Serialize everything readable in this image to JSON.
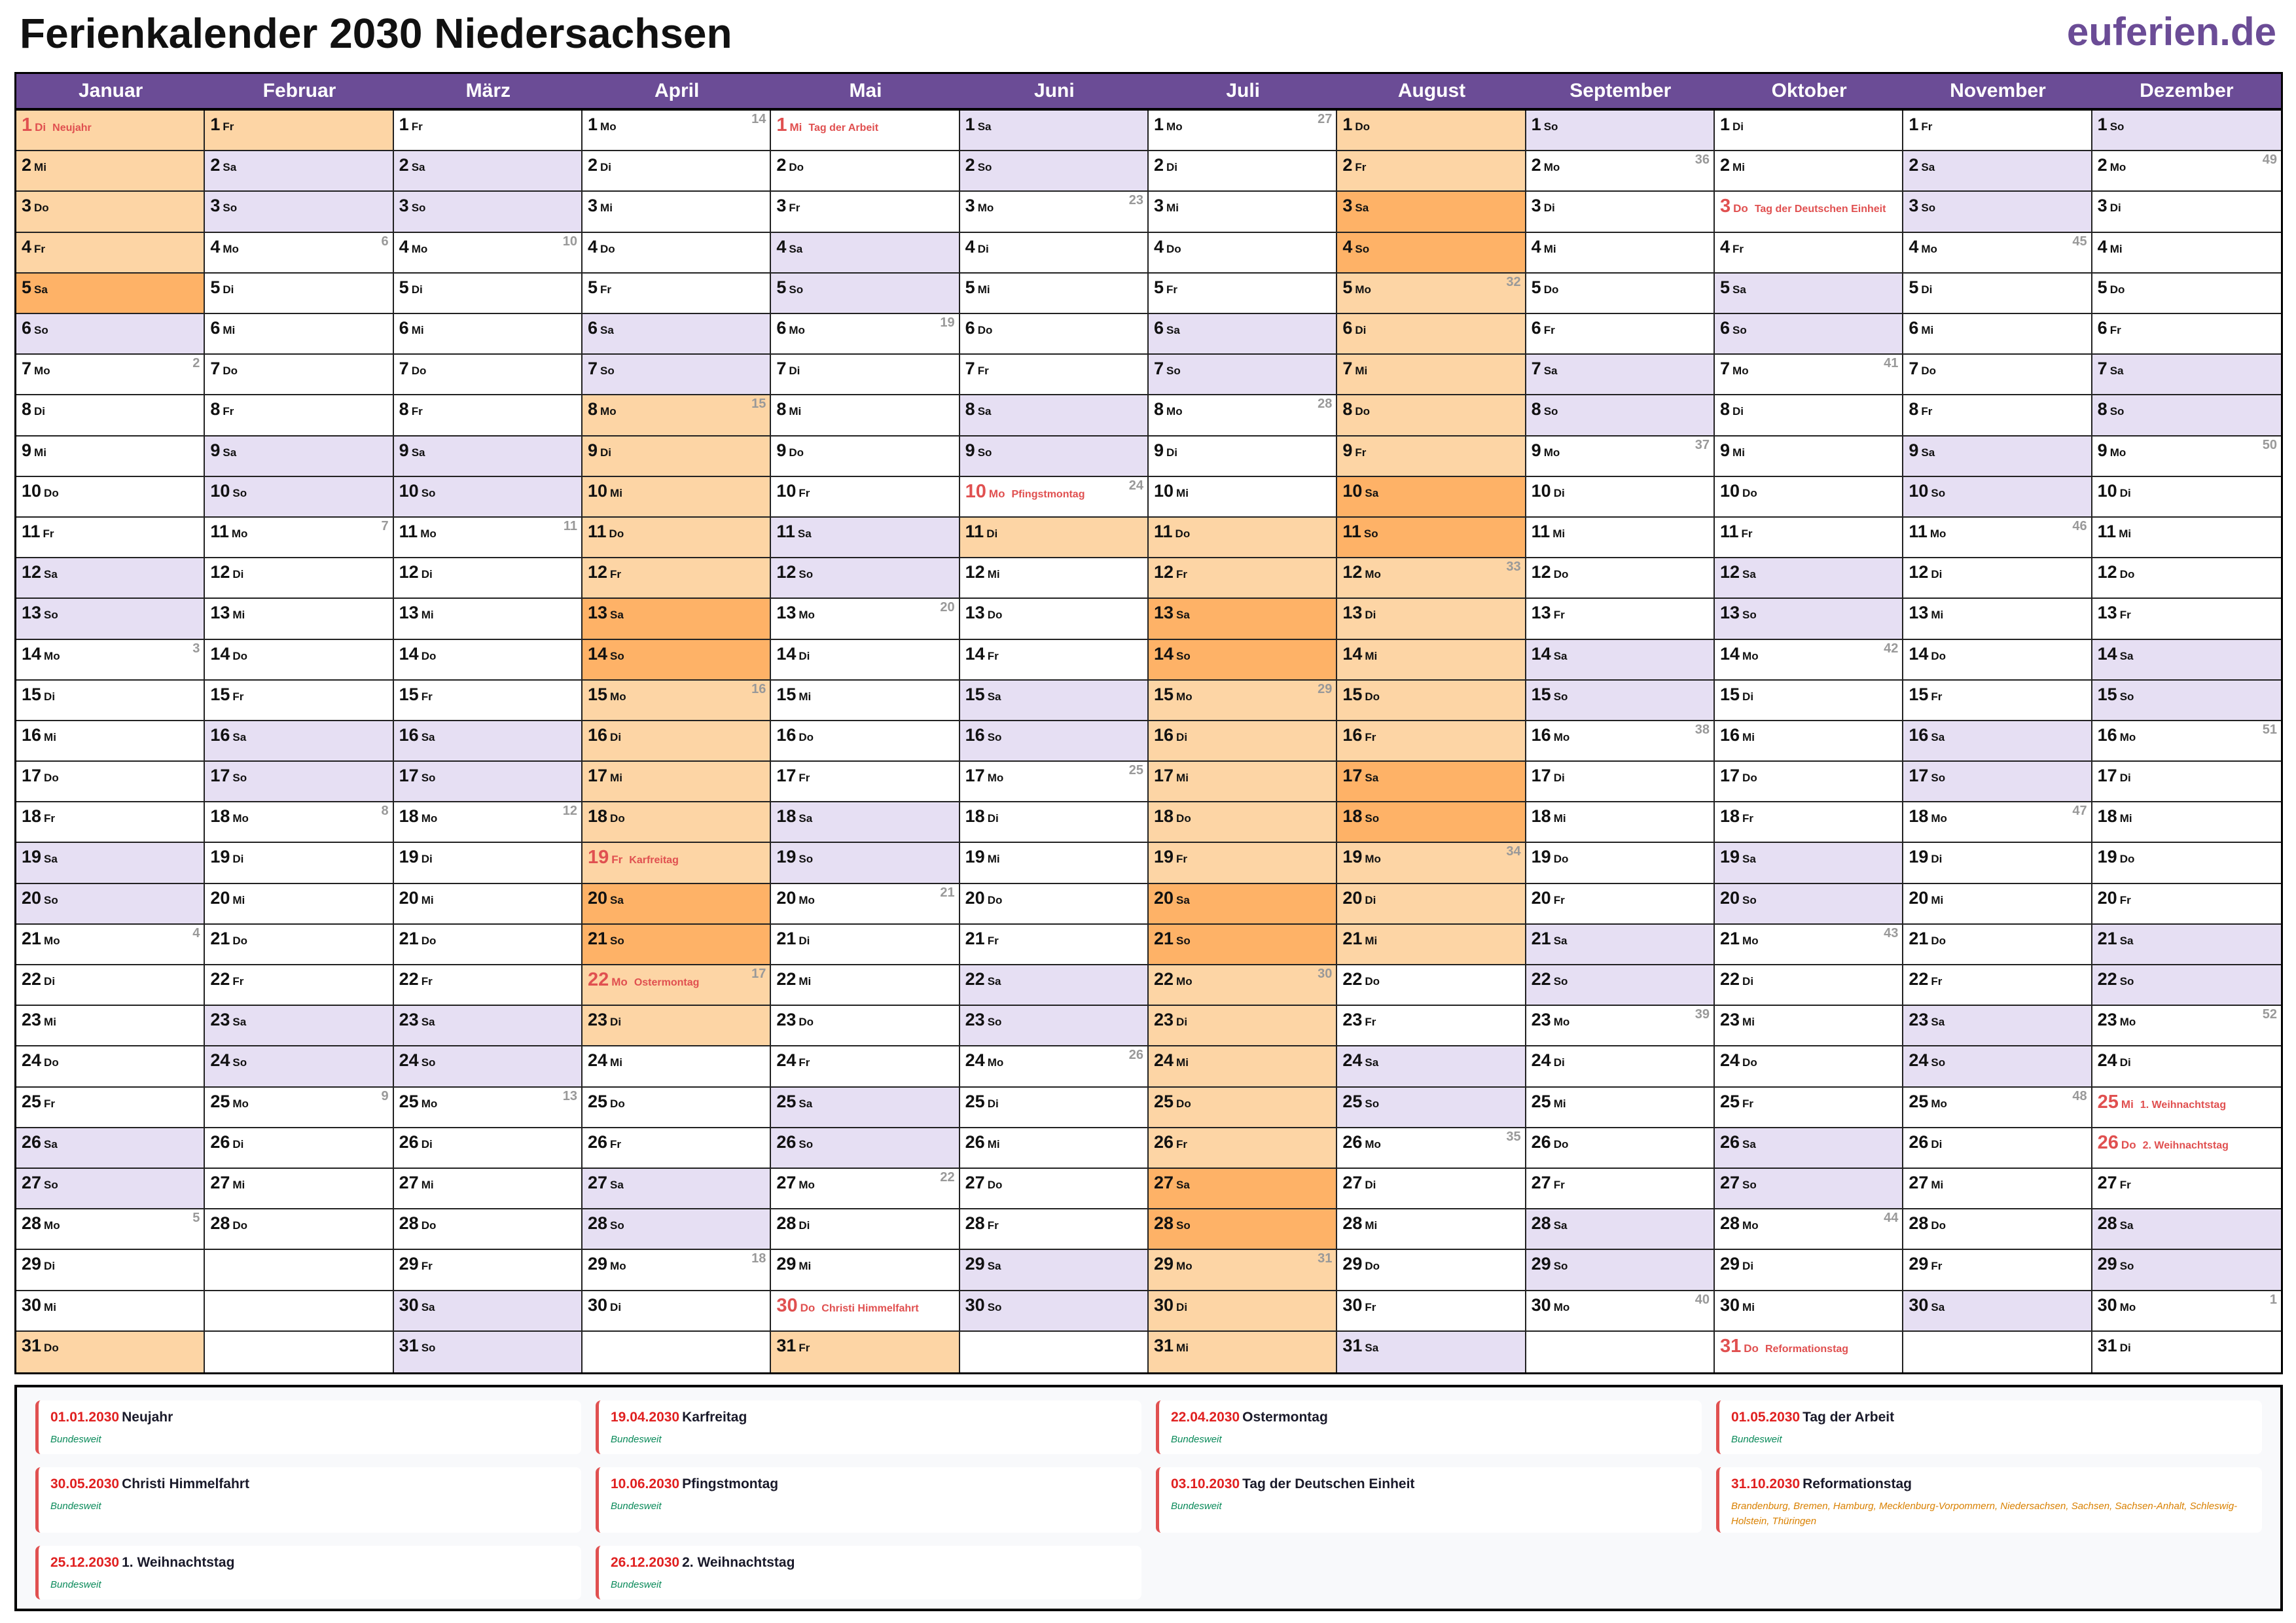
{
  "header": {
    "title": "Ferienkalender 2030 Niedersachsen",
    "logo": "euferien.de"
  },
  "year": 2030,
  "months": [
    "Januar",
    "Februar",
    "März",
    "April",
    "Mai",
    "Juni",
    "Juli",
    "August",
    "September",
    "Oktober",
    "November",
    "Dezember"
  ],
  "weekdays": [
    "Mo",
    "Di",
    "Mi",
    "Do",
    "Fr",
    "Sa",
    "So"
  ],
  "colors": {
    "header": "#6b4c96",
    "weekend": "#e6dff3",
    "vacation": "#fdd5a5",
    "vacation_weekend": "#feb267",
    "holiday": "#e05050"
  },
  "vacations": [
    {
      "from": "2030-01-01",
      "to": "2030-01-05"
    },
    {
      "from": "2030-01-31",
      "to": "2030-02-01"
    },
    {
      "from": "2030-04-08",
      "to": "2030-04-23"
    },
    {
      "from": "2030-05-31",
      "to": "2030-05-31"
    },
    {
      "from": "2030-06-11",
      "to": "2030-06-11"
    },
    {
      "from": "2030-07-11",
      "to": "2030-08-21"
    }
  ],
  "holidays": [
    {
      "date": "01.01.2030",
      "name": "Neujahr",
      "scope": "Bundesweit",
      "regional": false
    },
    {
      "date": "19.04.2030",
      "name": "Karfreitag",
      "scope": "Bundesweit",
      "regional": false
    },
    {
      "date": "22.04.2030",
      "name": "Ostermontag",
      "scope": "Bundesweit",
      "regional": false
    },
    {
      "date": "01.05.2030",
      "name": "Tag der Arbeit",
      "scope": "Bundesweit",
      "regional": false
    },
    {
      "date": "30.05.2030",
      "name": "Christi Himmelfahrt",
      "scope": "Bundesweit",
      "regional": false
    },
    {
      "date": "10.06.2030",
      "name": "Pfingstmontag",
      "scope": "Bundesweit",
      "regional": false
    },
    {
      "date": "03.10.2030",
      "name": "Tag der Deutschen Einheit",
      "scope": "Bundesweit",
      "regional": false
    },
    {
      "date": "31.10.2030",
      "name": "Reformationstag",
      "scope": "Brandenburg, Bremen, Hamburg, Mecklenburg-Vorpommern, Niedersachsen, Sachsen, Sachsen-Anhalt, Schleswig-Holstein, Thüringen",
      "regional": true
    },
    {
      "date": "25.12.2030",
      "name": "1. Weihnachtstag",
      "scope": "Bundesweit",
      "regional": false
    },
    {
      "date": "26.12.2030",
      "name": "2. Weihnachtstag",
      "scope": "Bundesweit",
      "regional": false
    }
  ]
}
